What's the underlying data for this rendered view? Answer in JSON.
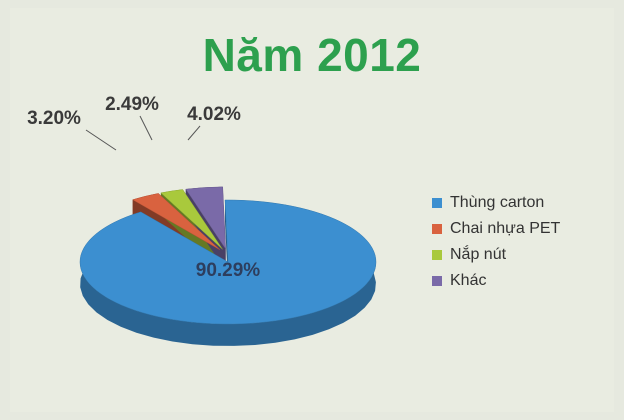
{
  "title": "Năm 2012",
  "chart_data": {
    "type": "pie",
    "title": "Năm 2012",
    "categories": [
      "Thùng carton",
      "Chai nhựa PET",
      "Nắp nút",
      "Khác"
    ],
    "values": [
      90.29,
      3.2,
      2.49,
      4.02
    ],
    "labels": [
      "90.29%",
      "3.20%",
      "2.49%",
      "4.02%"
    ],
    "colors": [
      "#3c8fd0",
      "#d9623f",
      "#a9c93c",
      "#7a6aa8"
    ],
    "style": "3d-exploded",
    "legend_position": "right"
  }
}
